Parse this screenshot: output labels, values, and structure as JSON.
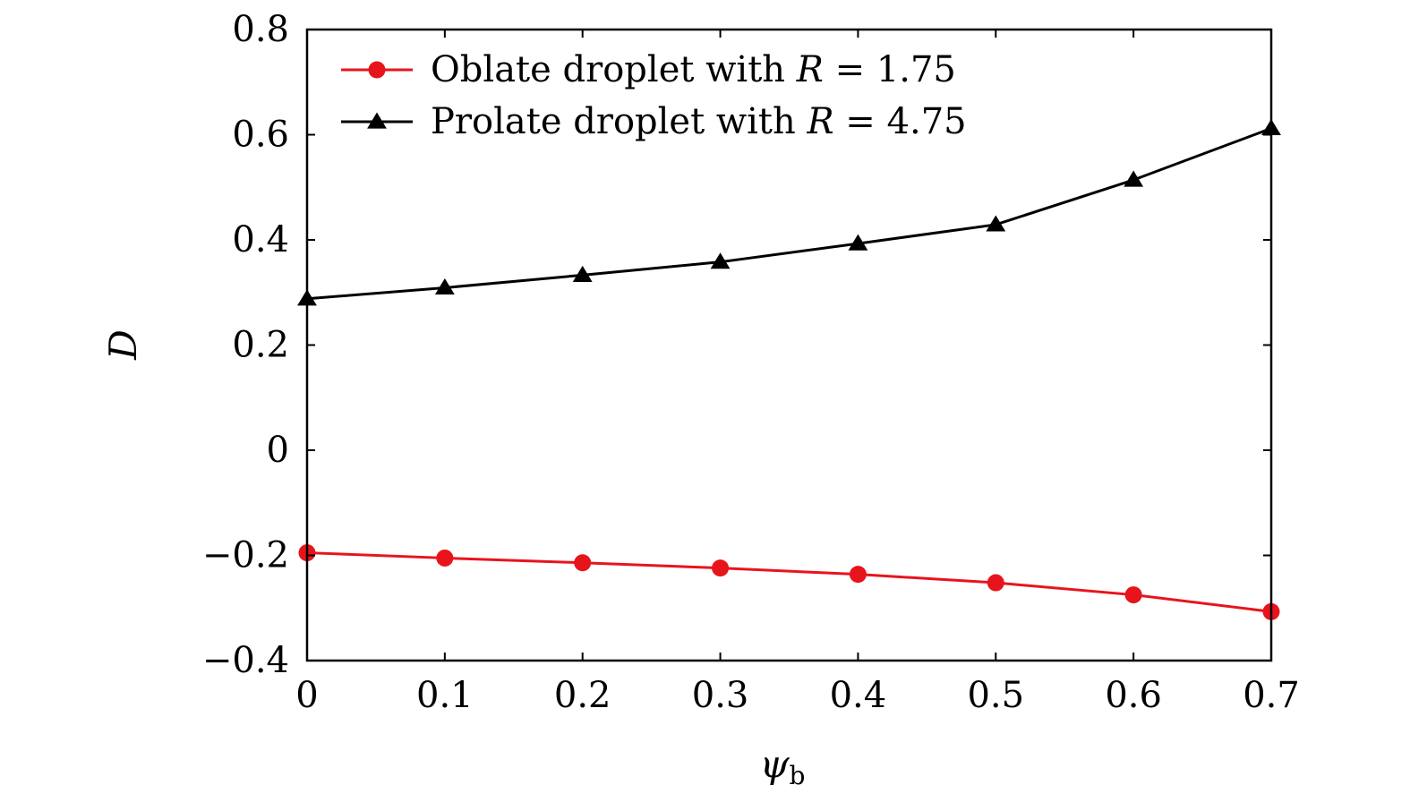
{
  "chart_data": {
    "type": "line",
    "title": "",
    "xlabel": "ψ",
    "xlabel_sub": "b",
    "ylabel": "D",
    "xlim": [
      0,
      0.7
    ],
    "ylim": [
      -0.4,
      0.8
    ],
    "xticks": [
      0,
      0.1,
      0.2,
      0.3,
      0.4,
      0.5,
      0.6,
      0.7
    ],
    "xtick_labels": [
      "0",
      "0.1",
      "0.2",
      "0.3",
      "0.4",
      "0.5",
      "0.6",
      "0.7"
    ],
    "yticks": [
      -0.4,
      -0.2,
      0,
      0.2,
      0.4,
      0.6,
      0.8
    ],
    "ytick_labels": [
      "−0.4",
      "−0.2",
      "0",
      "0.2",
      "0.4",
      "0.6",
      "0.8"
    ],
    "legend_position": "top-left",
    "x": [
      0,
      0.1,
      0.2,
      0.3,
      0.4,
      0.5,
      0.6,
      0.7
    ],
    "series": [
      {
        "name": "Oblate droplet with R = 1.75",
        "label_prefix": "Oblate droplet with",
        "label_var": "R",
        "label_eq": "= 1.75",
        "marker": "circle",
        "color": "#e8141c",
        "values": [
          -0.195,
          -0.205,
          -0.214,
          -0.224,
          -0.236,
          -0.252,
          -0.275,
          -0.307
        ]
      },
      {
        "name": "Prolate droplet with R = 4.75",
        "label_prefix": "Prolate droplet with",
        "label_var": "R",
        "label_eq": "= 4.75",
        "marker": "triangle",
        "color": "#000000",
        "values": [
          0.288,
          0.309,
          0.333,
          0.358,
          0.393,
          0.429,
          0.514,
          0.612
        ]
      }
    ]
  }
}
